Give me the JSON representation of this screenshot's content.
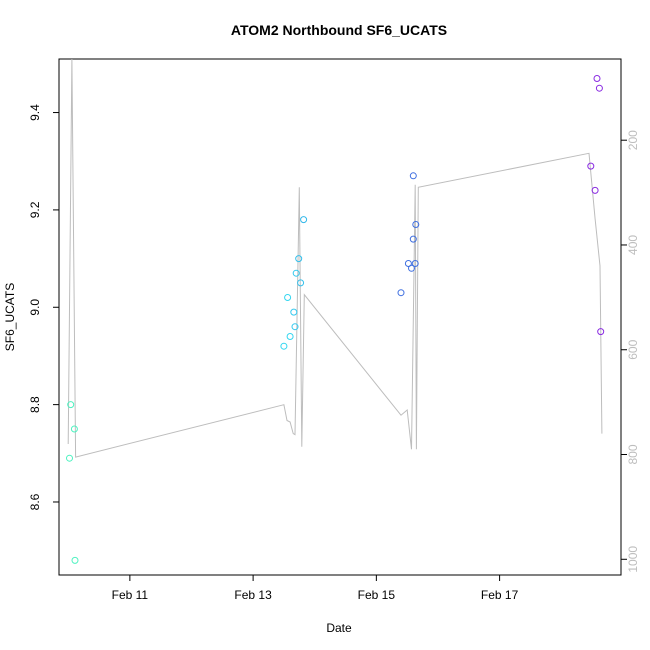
{
  "chart_data": {
    "type": "scatter",
    "title": "ATOM2 Northbound SF6_UCATS",
    "xlabel": "Date",
    "ylabel": "SF6_UCATS",
    "x_tick_labels": [
      "Feb 11",
      "Feb 13",
      "Feb 15",
      "Feb 17"
    ],
    "x_tick_values": [
      11,
      13,
      15,
      17
    ],
    "xlim": [
      9.85,
      18.97
    ],
    "ylim": [
      8.45,
      9.51
    ],
    "y_ticks": [
      8.6,
      8.8,
      9.0,
      9.2,
      9.4
    ],
    "y_tick_labels": [
      "8.6",
      "8.8",
      "9.0",
      "9.2",
      "9.4"
    ],
    "y2lim": [
      1030,
      45
    ],
    "y2_ticks": [
      200,
      400,
      600,
      800,
      1000
    ],
    "y2_tick_labels": [
      "200",
      "400",
      "600",
      "800",
      "1000"
    ],
    "points": [
      {
        "x": 10.02,
        "y": 8.69,
        "color": "#4ef2c0"
      },
      {
        "x": 10.04,
        "y": 8.8,
        "color": "#4ef2c0"
      },
      {
        "x": 10.1,
        "y": 8.75,
        "color": "#4ef2c0"
      },
      {
        "x": 10.11,
        "y": 8.48,
        "color": "#4ef2c0"
      },
      {
        "x": 13.5,
        "y": 8.92,
        "color": "#33d6f0"
      },
      {
        "x": 13.56,
        "y": 9.02,
        "color": "#33d6f0"
      },
      {
        "x": 13.6,
        "y": 8.94,
        "color": "#33d6f0"
      },
      {
        "x": 13.66,
        "y": 8.99,
        "color": "#33c8ee"
      },
      {
        "x": 13.68,
        "y": 8.96,
        "color": "#33c8ee"
      },
      {
        "x": 13.7,
        "y": 9.07,
        "color": "#33c8ee"
      },
      {
        "x": 13.74,
        "y": 9.1,
        "color": "#33c0ec"
      },
      {
        "x": 13.77,
        "y": 9.05,
        "color": "#33c0ec"
      },
      {
        "x": 13.82,
        "y": 9.18,
        "color": "#33b8ea"
      },
      {
        "x": 15.4,
        "y": 9.03,
        "color": "#3f6fe0"
      },
      {
        "x": 15.52,
        "y": 9.09,
        "color": "#3f6fe0"
      },
      {
        "x": 15.57,
        "y": 9.08,
        "color": "#3f6fe0"
      },
      {
        "x": 15.6,
        "y": 9.14,
        "color": "#3f6fe0"
      },
      {
        "x": 15.6,
        "y": 9.27,
        "color": "#3f6fe0"
      },
      {
        "x": 15.63,
        "y": 9.09,
        "color": "#3f6fe0"
      },
      {
        "x": 15.64,
        "y": 9.17,
        "color": "#3f6fe0"
      },
      {
        "x": 18.48,
        "y": 9.29,
        "color": "#8a2be2"
      },
      {
        "x": 18.55,
        "y": 9.24,
        "color": "#8a2be2"
      },
      {
        "x": 18.58,
        "y": 9.47,
        "color": "#8a2be2"
      },
      {
        "x": 18.62,
        "y": 9.45,
        "color": "#8a2be2"
      },
      {
        "x": 18.64,
        "y": 8.95,
        "color": "#8a2be2"
      }
    ],
    "secondary_line": {
      "color": "#bdbdbd",
      "points": [
        [
          10.0,
          780
        ],
        [
          10.06,
          5
        ],
        [
          10.12,
          805
        ],
        [
          13.5,
          705
        ],
        [
          13.55,
          735
        ],
        [
          13.6,
          738
        ],
        [
          13.65,
          760
        ],
        [
          13.68,
          762
        ],
        [
          13.75,
          290
        ],
        [
          13.79,
          785
        ],
        [
          13.83,
          495
        ],
        [
          15.4,
          725
        ],
        [
          15.5,
          715
        ],
        [
          15.57,
          790
        ],
        [
          15.63,
          285
        ],
        [
          15.65,
          790
        ],
        [
          15.68,
          290
        ],
        [
          18.45,
          225
        ],
        [
          18.55,
          350
        ],
        [
          18.63,
          440
        ],
        [
          18.66,
          760
        ]
      ]
    }
  }
}
